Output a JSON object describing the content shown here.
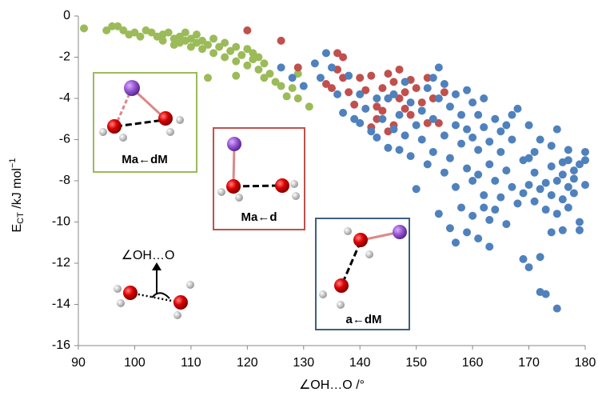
{
  "chart_data": {
    "type": "scatter",
    "xlabel": "∠OH…O /°",
    "ylabel": [
      "E",
      "CT",
      " /kJ mol",
      "−1"
    ],
    "xlim": [
      90,
      180
    ],
    "xticks": [
      90,
      100,
      110,
      120,
      130,
      140,
      150,
      160,
      170,
      180
    ],
    "ylim": [
      -16,
      0
    ],
    "yticks": [
      -16,
      -14,
      -12,
      -10,
      -8,
      -6,
      -4,
      -2,
      0
    ],
    "annotations": [
      "Ma←dM",
      "Ma←d",
      "a←dM",
      "∠OH…O"
    ],
    "series": [
      {
        "color": "#9bbb59",
        "x": [
          91,
          95,
          96,
          97,
          98,
          99,
          100,
          101,
          102,
          103,
          104,
          105,
          105,
          106,
          107,
          107,
          108,
          108,
          109,
          109,
          110,
          110,
          111,
          111,
          112,
          112,
          113,
          114,
          114,
          115,
          116,
          116,
          117,
          118,
          118,
          119,
          120,
          120,
          121,
          121,
          122,
          122,
          123,
          123,
          124,
          125,
          126,
          127,
          128,
          129,
          129,
          131,
          113,
          118
        ],
        "values": [
          -0.6,
          -0.7,
          -0.5,
          -0.5,
          -0.7,
          -0.9,
          -0.8,
          -1.0,
          -0.7,
          -0.8,
          -1.0,
          -0.9,
          -1.2,
          -0.8,
          -1.1,
          -1.4,
          -1.0,
          -1.3,
          -1.2,
          -0.8,
          -1.5,
          -1.1,
          -1.3,
          -0.9,
          -1.6,
          -1.2,
          -1.4,
          -1.1,
          -1.8,
          -1.5,
          -1.3,
          -2.0,
          -1.7,
          -1.5,
          -2.2,
          -1.9,
          -1.6,
          -2.4,
          -2.1,
          -1.8,
          -2.6,
          -2.0,
          -2.3,
          -3.0,
          -2.8,
          -3.2,
          -3.4,
          -3.9,
          -3.5,
          -4.0,
          -2.8,
          -4.4,
          -3.0,
          -2.9
        ]
      },
      {
        "color": "#c0504d",
        "x": [
          120,
          126,
          129,
          134,
          135,
          136,
          136,
          137,
          137,
          138,
          139,
          140,
          141,
          142,
          143,
          143,
          144,
          144,
          145,
          145,
          146,
          146,
          147,
          147,
          148,
          148,
          149,
          149,
          150,
          151,
          152,
          152,
          153,
          154,
          155,
          142,
          145
        ],
        "values": [
          -0.7,
          -1.2,
          -2.5,
          -3.3,
          -3.5,
          -2.6,
          -1.8,
          -3.0,
          -2.0,
          -3.7,
          -4.3,
          -3.0,
          -3.6,
          -2.9,
          -4.4,
          -5.0,
          -3.5,
          -4.6,
          -2.8,
          -4.0,
          -3.2,
          -5.3,
          -4.0,
          -2.6,
          -3.7,
          -4.5,
          -3.1,
          -4.8,
          -3.5,
          -4.2,
          -3.0,
          -5.2,
          -4.0,
          -5.2,
          -3.7,
          -5.4,
          -5.6
        ]
      },
      {
        "color": "#4f81bd",
        "x": [
          126,
          128,
          130,
          132,
          133,
          134,
          135,
          136,
          137,
          138,
          139,
          140,
          140,
          141,
          142,
          143,
          143,
          144,
          145,
          146,
          147,
          147,
          148,
          149,
          149,
          150,
          150,
          151,
          151,
          152,
          152,
          153,
          153,
          154,
          154,
          154,
          155,
          155,
          155,
          156,
          156,
          156,
          157,
          157,
          157,
          157,
          158,
          158,
          158,
          159,
          159,
          159,
          159,
          160,
          160,
          160,
          160,
          161,
          161,
          161,
          161,
          162,
          162,
          162,
          162,
          163,
          163,
          163,
          163,
          164,
          164,
          164,
          165,
          165,
          166,
          166,
          166,
          167,
          167,
          168,
          168,
          169,
          169,
          169,
          170,
          170,
          170,
          171,
          171,
          171,
          172,
          172,
          172,
          172,
          173,
          173,
          173,
          174,
          174,
          174,
          174,
          175,
          175,
          175,
          175,
          176,
          176,
          176,
          176,
          177,
          177,
          177,
          177,
          178,
          178,
          178,
          179,
          179,
          179,
          180,
          180,
          180,
          145,
          148,
          146,
          153,
          165,
          167,
          170
        ],
        "values": [
          -2.5,
          -3.0,
          -3.4,
          -2.3,
          -3.0,
          -1.8,
          -2.5,
          -3.8,
          -4.7,
          -2.9,
          -5.0,
          -3.8,
          -5.2,
          -4.5,
          -5.6,
          -4.0,
          -5.9,
          -5.0,
          -6.4,
          -5.5,
          -4.8,
          -6.5,
          -5.8,
          -4.2,
          -6.8,
          -8.4,
          -5.3,
          -6.0,
          -4.6,
          -7.2,
          -3.5,
          -5.0,
          -6.6,
          -2.5,
          -4.0,
          -9.6,
          -3.3,
          -5.8,
          -7.6,
          -4.4,
          -10.3,
          -6.9,
          -3.8,
          -5.3,
          -8.3,
          -11.0,
          -4.8,
          -6.2,
          -9.3,
          -3.6,
          -5.5,
          -7.4,
          -10.5,
          -4.2,
          -5.9,
          -8.0,
          -9.7,
          -4.8,
          -6.5,
          -7.7,
          -10.8,
          -4.0,
          -5.4,
          -8.7,
          -9.3,
          -6.1,
          -7.2,
          -9.9,
          -11.2,
          -5.0,
          -8.0,
          -9.4,
          -6.6,
          -8.8,
          -5.3,
          -7.5,
          -10.1,
          -8.3,
          -6.0,
          -4.5,
          -9.1,
          -7.0,
          -11.8,
          -8.6,
          -12.2,
          -8.2,
          -5.3,
          -9.0,
          -7.6,
          -6.6,
          -11.7,
          -8.4,
          -13.4,
          -6.0,
          -9.4,
          -8.1,
          -13.5,
          -7.3,
          -8.7,
          -10.5,
          -6.3,
          -14.2,
          -8.0,
          -9.6,
          -5.5,
          -7.1,
          -8.9,
          -10.4,
          -7.7,
          -7.0,
          -8.3,
          -9.3,
          -6.5,
          -7.5,
          -8.6,
          -7.9,
          -7.2,
          -10.0,
          -10.4,
          -8.2,
          -7.0,
          -6.6,
          -4.0,
          -3.2,
          -3.8,
          -3.0,
          -5.6,
          -4.8,
          -6.9
        ]
      }
    ]
  }
}
